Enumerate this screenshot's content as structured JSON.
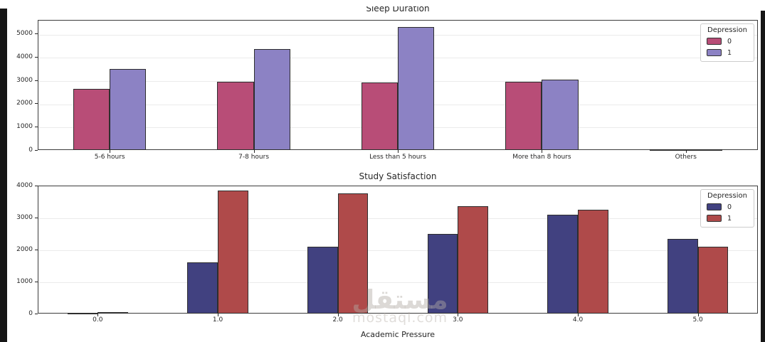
{
  "watermark": {
    "brand_arabic": "مستقل",
    "brand_domain": "mostaql.com"
  },
  "chart_data": [
    {
      "type": "bar",
      "title": "Sleep Duration",
      "xlabel": "",
      "ylabel": "",
      "legend_title": "Depression",
      "legend_position": "upper right",
      "grid": "horizontal",
      "categories": [
        "5-6 hours",
        "7-8 hours",
        "Less than 5 hours",
        "More than 8 hours",
        "Others"
      ],
      "series": [
        {
          "name": "0",
          "color": "#b84d77",
          "values": [
            2630,
            2940,
            2920,
            2930,
            12
          ]
        },
        {
          "name": "1",
          "color": "#8c82c4",
          "values": [
            3480,
            4340,
            5310,
            3040,
            18
          ]
        }
      ],
      "ylim": [
        0,
        5600
      ],
      "yticks": [
        0,
        1000,
        2000,
        3000,
        4000,
        5000
      ]
    },
    {
      "type": "bar",
      "title": "Study Satisfaction",
      "xlabel": "Academic Pressure",
      "ylabel": "",
      "legend_title": "Depression",
      "legend_position": "upper right",
      "grid": "horizontal",
      "categories": [
        "0.0",
        "1.0",
        "2.0",
        "3.0",
        "4.0",
        "5.0"
      ],
      "series": [
        {
          "name": "0",
          "color": "#414180",
          "values": [
            8,
            1590,
            2080,
            2480,
            3100,
            2330
          ]
        },
        {
          "name": "1",
          "color": "#af4a4a",
          "values": [
            40,
            3840,
            3760,
            3350,
            3240,
            2090
          ]
        }
      ],
      "ylim": [
        0,
        4000
      ],
      "yticks": [
        0,
        1000,
        2000,
        3000,
        4000
      ]
    }
  ]
}
